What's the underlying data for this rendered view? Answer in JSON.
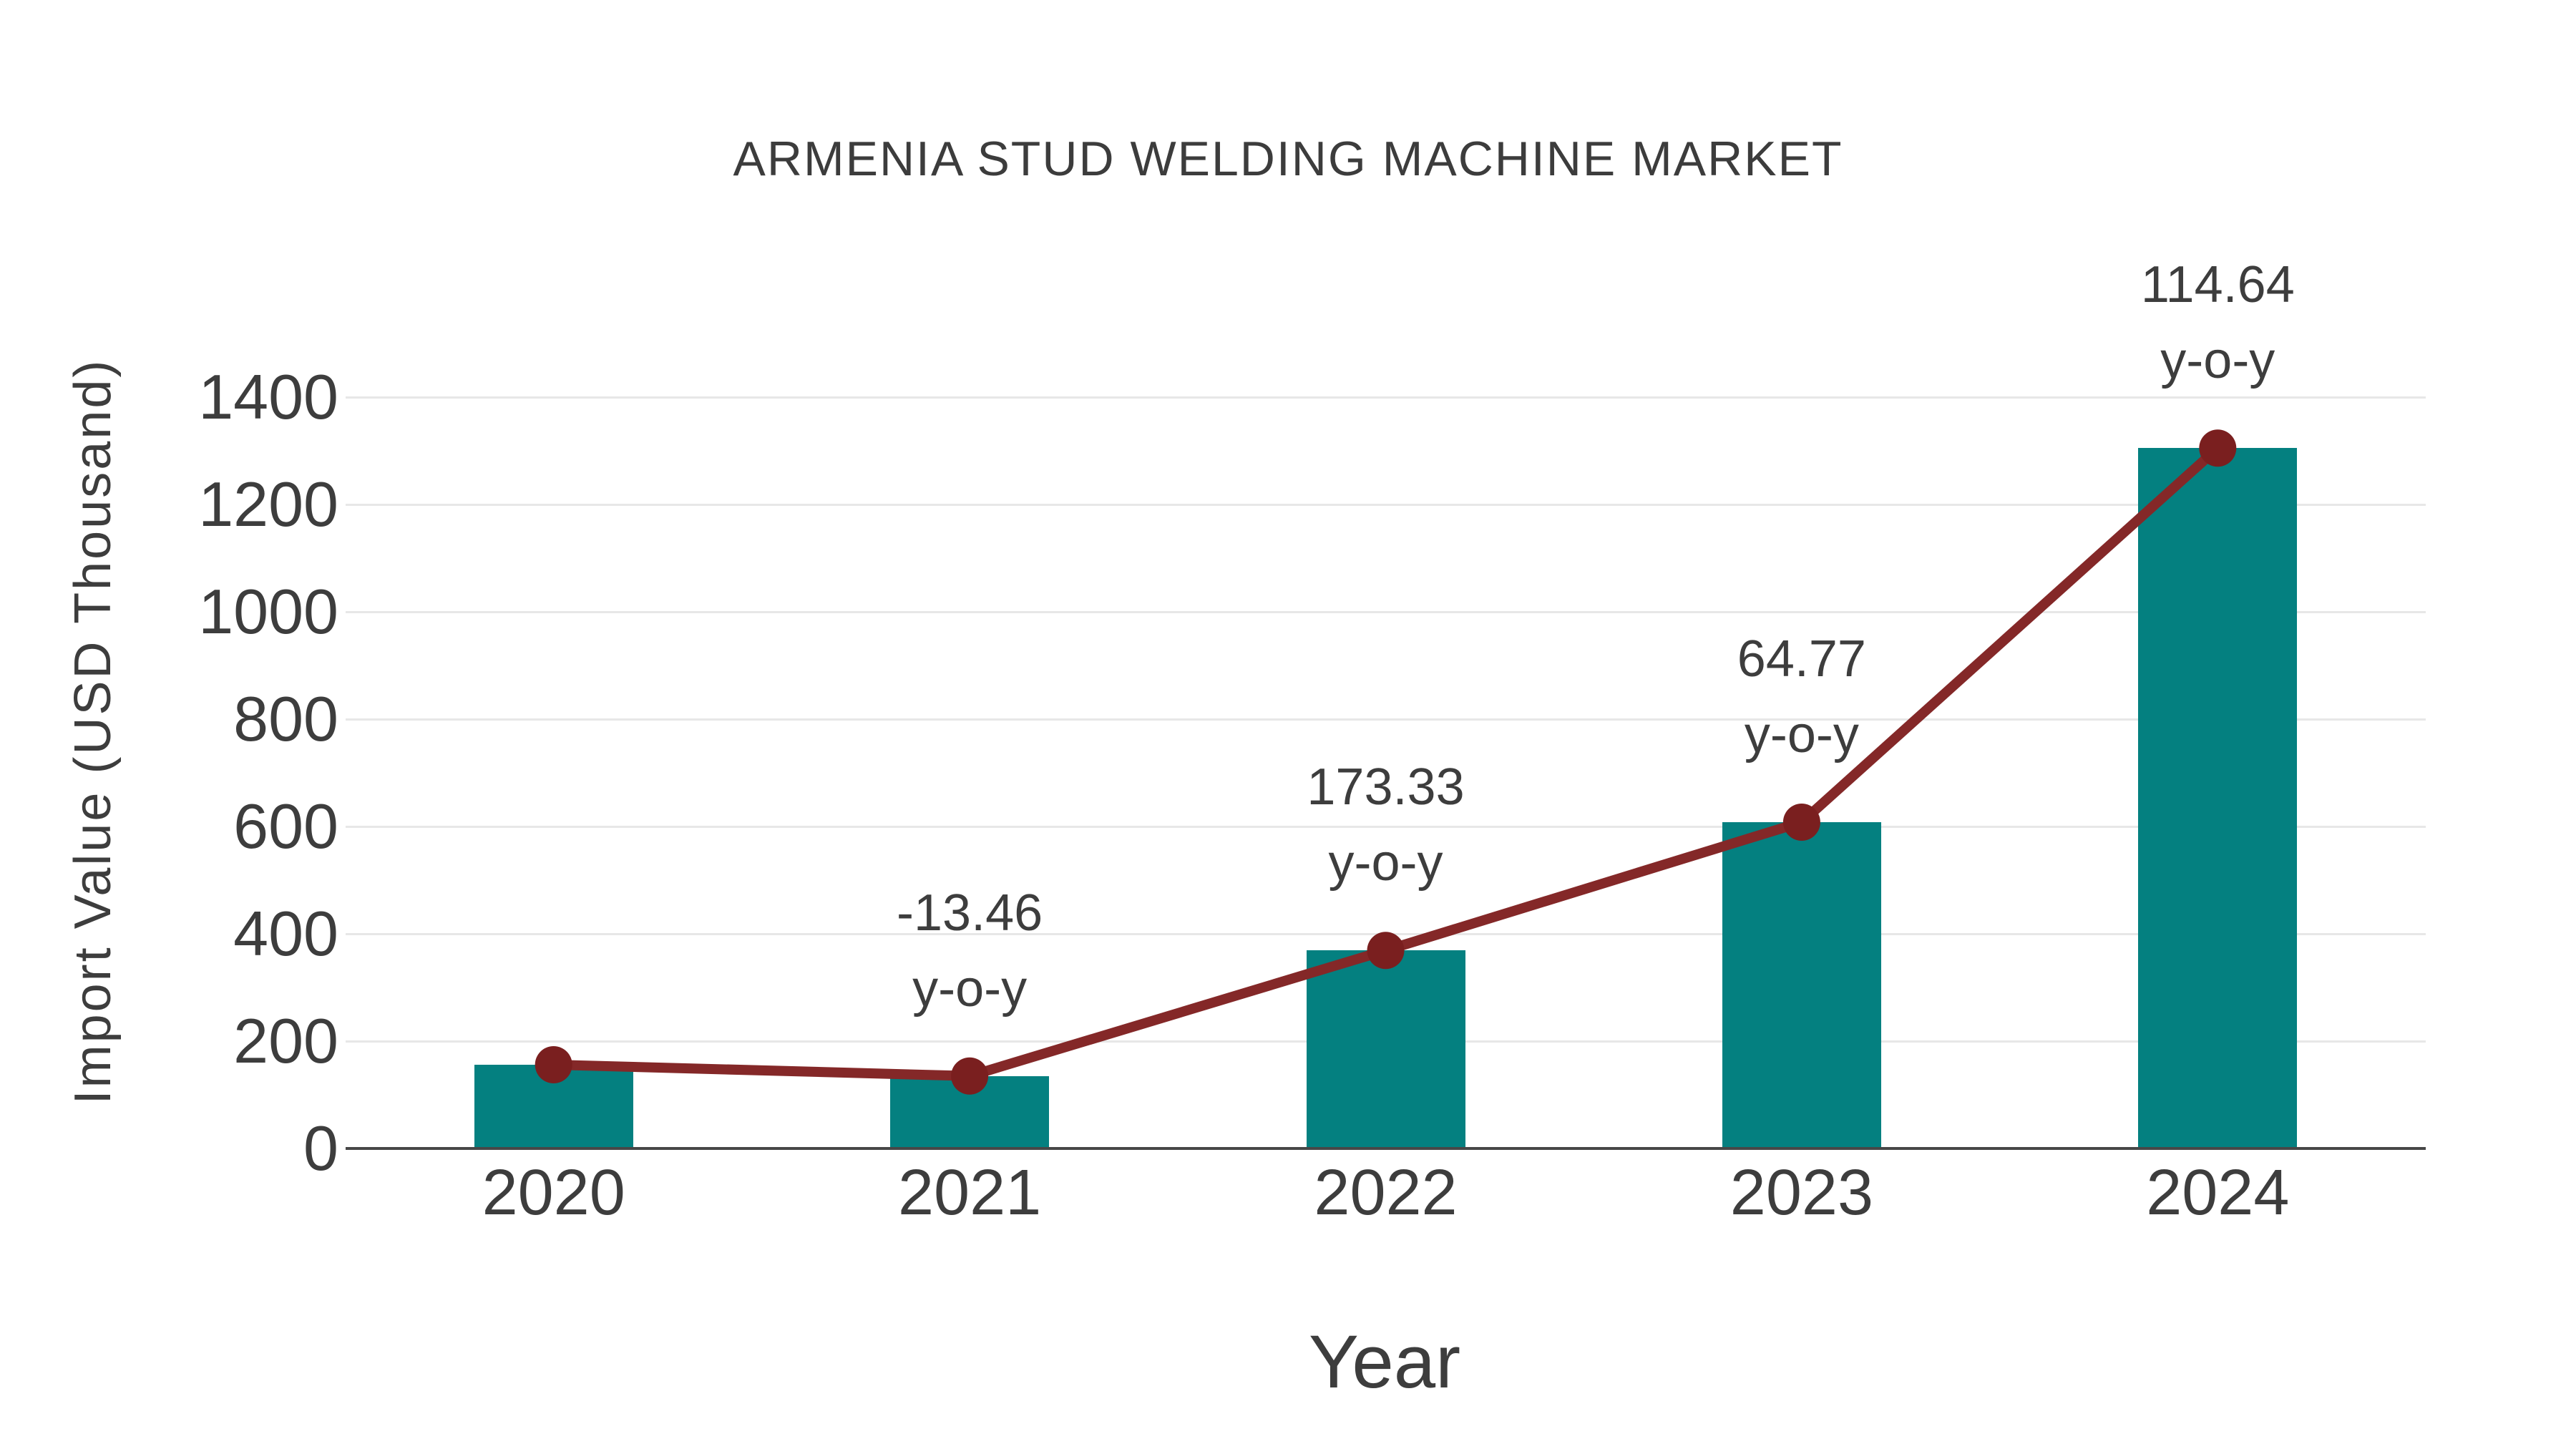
{
  "chart_data": {
    "type": "bar",
    "title": "ARMENIA STUD WELDING MACHINE MARKET",
    "xlabel": "Year",
    "ylabel": "Import Value (USD Thousand)",
    "categories": [
      "2020",
      "2021",
      "2022",
      "2023",
      "2024"
    ],
    "series": [
      {
        "name": "Import Value (USD Thousand)",
        "type": "bar",
        "values": [
          156,
          135,
          369,
          608,
          1305
        ]
      },
      {
        "name": "y-o-y growth",
        "type": "line",
        "values": [
          156,
          135,
          369,
          608,
          1305
        ],
        "yoy_percent": [
          null,
          -13.46,
          173.33,
          64.77,
          114.64
        ],
        "point_labels": [
          "",
          "-13.46",
          "173.33",
          "64.77",
          "114.64"
        ],
        "label_suffix": "y-o-y"
      }
    ],
    "ylim": [
      0,
      1400
    ],
    "yticks": [
      0,
      200,
      400,
      600,
      800,
      1000,
      1200,
      1400
    ],
    "grid": true,
    "legend_position": "none",
    "colors": {
      "bar": "#048080",
      "line": "#842828",
      "marker": "#7a1f1f",
      "grid": "#e7e7e7",
      "axis_line": "#474747",
      "text": "#3d3d3d"
    }
  }
}
